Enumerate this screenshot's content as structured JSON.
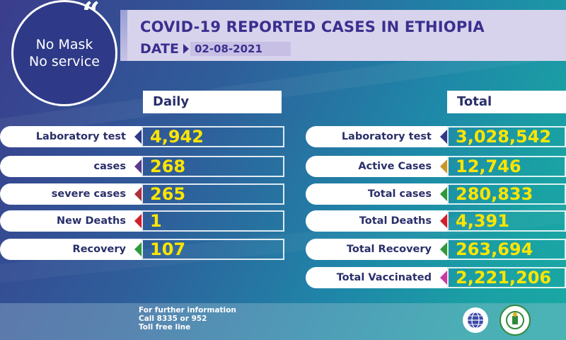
{
  "header": {
    "title": "COVID-19 REPORTED CASES IN ETHIOPIA",
    "date_label": "DATE",
    "date_value": "02-08-2021"
  },
  "badge": {
    "line1": "No Mask",
    "line2": "No service",
    "quote": "“"
  },
  "daily": {
    "header": "Daily",
    "rows": [
      {
        "label": "Laboratory test",
        "value": "4,942",
        "marker_color": "#2e3a87"
      },
      {
        "label": "cases",
        "value": "268",
        "marker_color": "#5b3a8c"
      },
      {
        "label": "severe cases",
        "value": "265",
        "marker_color": "#b0303a"
      },
      {
        "label": "New Deaths",
        "value": "1",
        "marker_color": "#d21f2a"
      },
      {
        "label": "Recovery",
        "value": "107",
        "marker_color": "#2e9a3a"
      }
    ]
  },
  "total": {
    "header": "Total",
    "rows": [
      {
        "label": "Laboratory test",
        "value": "3,028,542",
        "marker_color": "#2e3a87"
      },
      {
        "label": "Active Cases",
        "value": "12,746",
        "marker_color": "#c9962a"
      },
      {
        "label": "Total cases",
        "value": "280,833",
        "marker_color": "#2e9a3a"
      },
      {
        "label": "Total Deaths",
        "value": "4,391",
        "marker_color": "#d21f2a"
      },
      {
        "label": "Total Recovery",
        "value": "263,694",
        "marker_color": "#2e9a3a"
      },
      {
        "label": "Total Vaccinated",
        "value": "2,221,206",
        "marker_color": "#c93aa0"
      }
    ]
  },
  "footer": {
    "line1": "For further information",
    "line2": "Call 8335 or 952",
    "line3": "Toll free line"
  },
  "logos": [
    "ministry-of-health-logo",
    "ephi-logo"
  ],
  "colors": {
    "value_yellow": "#ffe500",
    "label_navy": "#2a2f6a",
    "title_purple": "#3a2f8f",
    "banner_lavender": "#d7d3ec"
  }
}
